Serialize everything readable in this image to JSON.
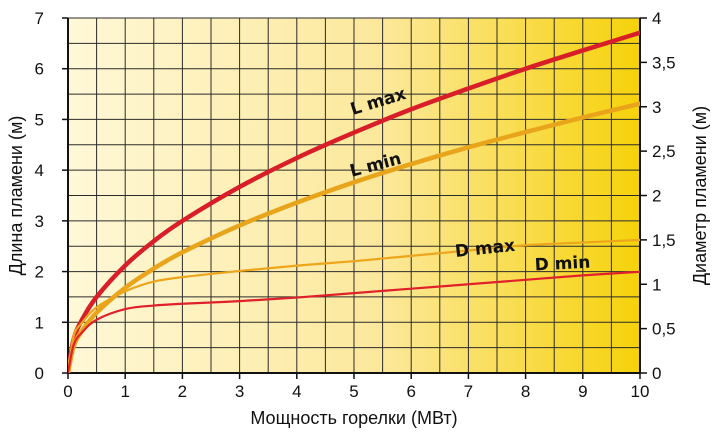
{
  "chart_data": {
    "type": "line",
    "xlabel": "Мощность горелки (МВт)",
    "ylabel": "Длина пламени (м)",
    "y2label": "Диаметр пламени (м)",
    "xlim": [
      0,
      10
    ],
    "ylim": [
      0,
      7
    ],
    "y2lim": [
      0,
      4
    ],
    "x_ticks": [
      "0",
      "1",
      "2",
      "3",
      "4",
      "5",
      "6",
      "7",
      "8",
      "9",
      "10"
    ],
    "y_ticks": [
      "0",
      "1",
      "2",
      "3",
      "4",
      "5",
      "6",
      "7"
    ],
    "y2_ticks": [
      "0",
      "0,5",
      "1",
      "1,5",
      "2",
      "2,5",
      "3",
      "3,5",
      "4"
    ],
    "grid": true,
    "series": [
      {
        "name": "L max",
        "axis": "left",
        "color": "#d81e28",
        "x": [
          0,
          0.1,
          0.25,
          0.5,
          1,
          1.5,
          2,
          3,
          4,
          5,
          6,
          7,
          8,
          9,
          10
        ],
        "y": [
          0,
          0.67,
          1.06,
          1.5,
          2.12,
          2.6,
          3.0,
          3.67,
          4.24,
          4.74,
          5.2,
          5.61,
          6.0,
          6.36,
          6.71
        ]
      },
      {
        "name": "L min",
        "axis": "left",
        "color": "#e8a41a",
        "x": [
          0,
          0.1,
          0.25,
          0.5,
          1,
          1.5,
          2,
          3,
          4,
          5,
          6,
          7,
          8,
          9,
          10
        ],
        "y": [
          0,
          0.53,
          0.84,
          1.19,
          1.68,
          2.06,
          2.38,
          2.91,
          3.36,
          3.76,
          4.12,
          4.45,
          4.75,
          5.04,
          5.31
        ]
      },
      {
        "name": "D max",
        "axis": "right",
        "color": "#eda51c",
        "x": [
          0,
          0.1,
          0.25,
          0.5,
          1,
          1.5,
          2,
          3,
          4,
          5,
          6,
          7,
          8,
          9,
          10
        ],
        "y": [
          0,
          0.42,
          0.57,
          0.74,
          0.92,
          1.03,
          1.08,
          1.15,
          1.21,
          1.26,
          1.32,
          1.38,
          1.44,
          1.47,
          1.5
        ]
      },
      {
        "name": "D min",
        "axis": "right",
        "color": "#e0202a",
        "x": [
          0,
          0.1,
          0.25,
          0.5,
          1,
          1.5,
          2,
          3,
          4,
          5,
          6,
          7,
          8,
          9,
          10
        ],
        "y": [
          0,
          0.32,
          0.46,
          0.6,
          0.72,
          0.76,
          0.78,
          0.81,
          0.85,
          0.9,
          0.95,
          1.0,
          1.05,
          1.1,
          1.14
        ]
      }
    ],
    "labels": [
      {
        "text": "L max",
        "x": 5.45,
        "y": 5.25,
        "axis": "left",
        "angle": -17
      },
      {
        "text": "L min",
        "x": 5.4,
        "y": 4.0,
        "axis": "left",
        "angle": -15
      },
      {
        "text": "D max",
        "x": 7.3,
        "y": 2.35,
        "axis": "left",
        "angle": -6
      },
      {
        "text": "D min",
        "x": 8.65,
        "y": 2.05,
        "axis": "left",
        "angle": -3
      }
    ],
    "colors": {
      "background_light": "#fff8d8",
      "background_mid": "#fce89a",
      "background_dark": "#f6d20a",
      "grid": "#2b2b2b",
      "axis": "#111111"
    }
  }
}
